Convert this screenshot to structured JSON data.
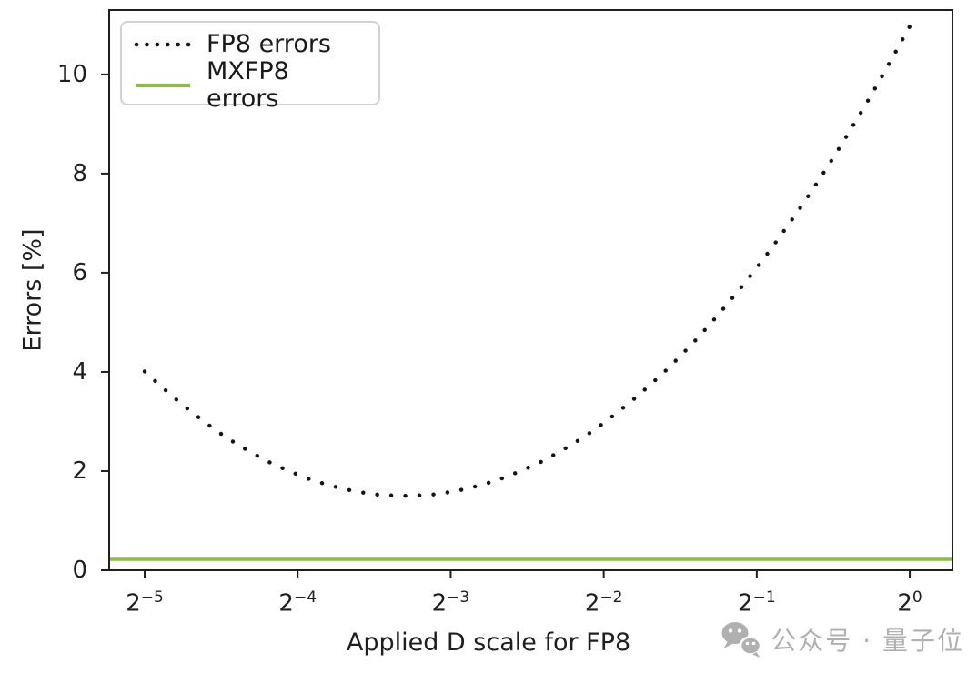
{
  "chart_data": {
    "type": "line",
    "title": "",
    "xlabel": "Applied D scale for FP8",
    "ylabel": "Errors [%]",
    "x_scale": "log2",
    "xlim_log2": [
      -5.232,
      0.279
    ],
    "ylim": [
      0,
      11.3
    ],
    "grid": false,
    "legend_position": "upper left",
    "x_ticks": [
      {
        "log2": -5,
        "base": "2",
        "exp": "−5"
      },
      {
        "log2": -4,
        "base": "2",
        "exp": "−4"
      },
      {
        "log2": -3,
        "base": "2",
        "exp": "−3"
      },
      {
        "log2": -2,
        "base": "2",
        "exp": "−2"
      },
      {
        "log2": -1,
        "base": "2",
        "exp": "−1"
      },
      {
        "log2": 0,
        "base": "2",
        "exp": "0"
      }
    ],
    "y_ticks": [
      0,
      2,
      4,
      6,
      8,
      10
    ],
    "series": [
      {
        "name": "FP8 errors",
        "style": "dotted",
        "color": "#151515",
        "log2_x": [
          -5,
          -4.9,
          -4.8,
          -4.7,
          -4.6,
          -4.5,
          -4.4,
          -4.3,
          -4.2,
          -4.1,
          -4,
          -3.9,
          -3.8,
          -3.7,
          -3.6,
          -3.5,
          -3.4,
          -3.3,
          -3.2,
          -3.1,
          -3,
          -2.9,
          -2.8,
          -2.7,
          -2.6,
          -2.5,
          -2.4,
          -2.3,
          -2.2,
          -2.1,
          -2,
          -1.9,
          -1.8,
          -1.7,
          -1.6,
          -1.5,
          -1.4,
          -1.3,
          -1.2,
          -1.1,
          -1,
          -0.9,
          -0.8,
          -0.7,
          -0.6,
          -0.5,
          -0.4,
          -0.3,
          -0.2,
          -0.1,
          0
        ],
        "errors_pct": [
          4.01,
          3.73,
          3.46,
          3.21,
          2.97,
          2.75,
          2.55,
          2.37,
          2.2,
          2.06,
          1.93,
          1.81,
          1.72,
          1.64,
          1.58,
          1.53,
          1.51,
          1.5,
          1.51,
          1.53,
          1.58,
          1.64,
          1.72,
          1.81,
          1.93,
          2.06,
          2.2,
          2.37,
          2.55,
          2.75,
          2.97,
          3.21,
          3.46,
          3.73,
          4.01,
          4.32,
          4.64,
          4.98,
          5.34,
          5.71,
          6.1,
          6.51,
          6.94,
          7.38,
          7.84,
          8.32,
          8.82,
          9.33,
          9.86,
          10.41,
          10.97
        ]
      },
      {
        "name": "MXFP8 errors",
        "style": "solid-hline",
        "color": "#8cbb49",
        "value_pct": 0.22
      }
    ],
    "axis_color": "#1f1f1f"
  },
  "watermark": {
    "text": "公众号 · 量子位",
    "icon": "wechat-icon",
    "color": "#b0b0b0"
  }
}
